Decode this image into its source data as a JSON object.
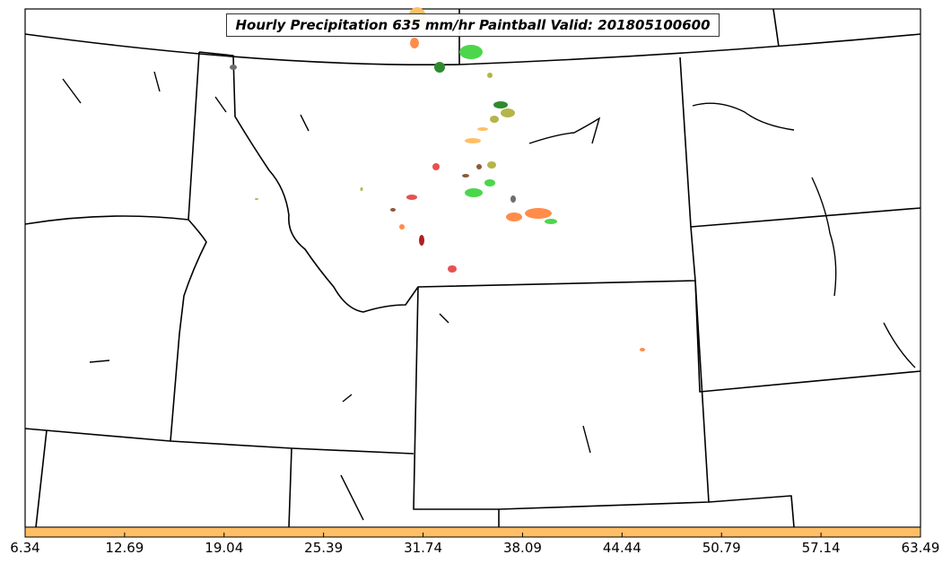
{
  "title": "Hourly Precipitation 635 mm/hr Paintball Valid: 201805100600",
  "colorbar": {
    "fill_color": "#ffbf66",
    "tick_labels": [
      "6.34",
      "12.69",
      "19.04",
      "25.39",
      "31.74",
      "38.09",
      "44.44",
      "50.79",
      "57.14",
      "63.49"
    ]
  },
  "colors": {
    "boundary": "#000000",
    "paintball": [
      "#ffbf66",
      "#ff8c4a",
      "#4cd64c",
      "#2e8b2e",
      "#b5b54a",
      "#e85050",
      "#b01f1f",
      "#6e6e6e",
      "#8c5a3c"
    ]
  }
}
